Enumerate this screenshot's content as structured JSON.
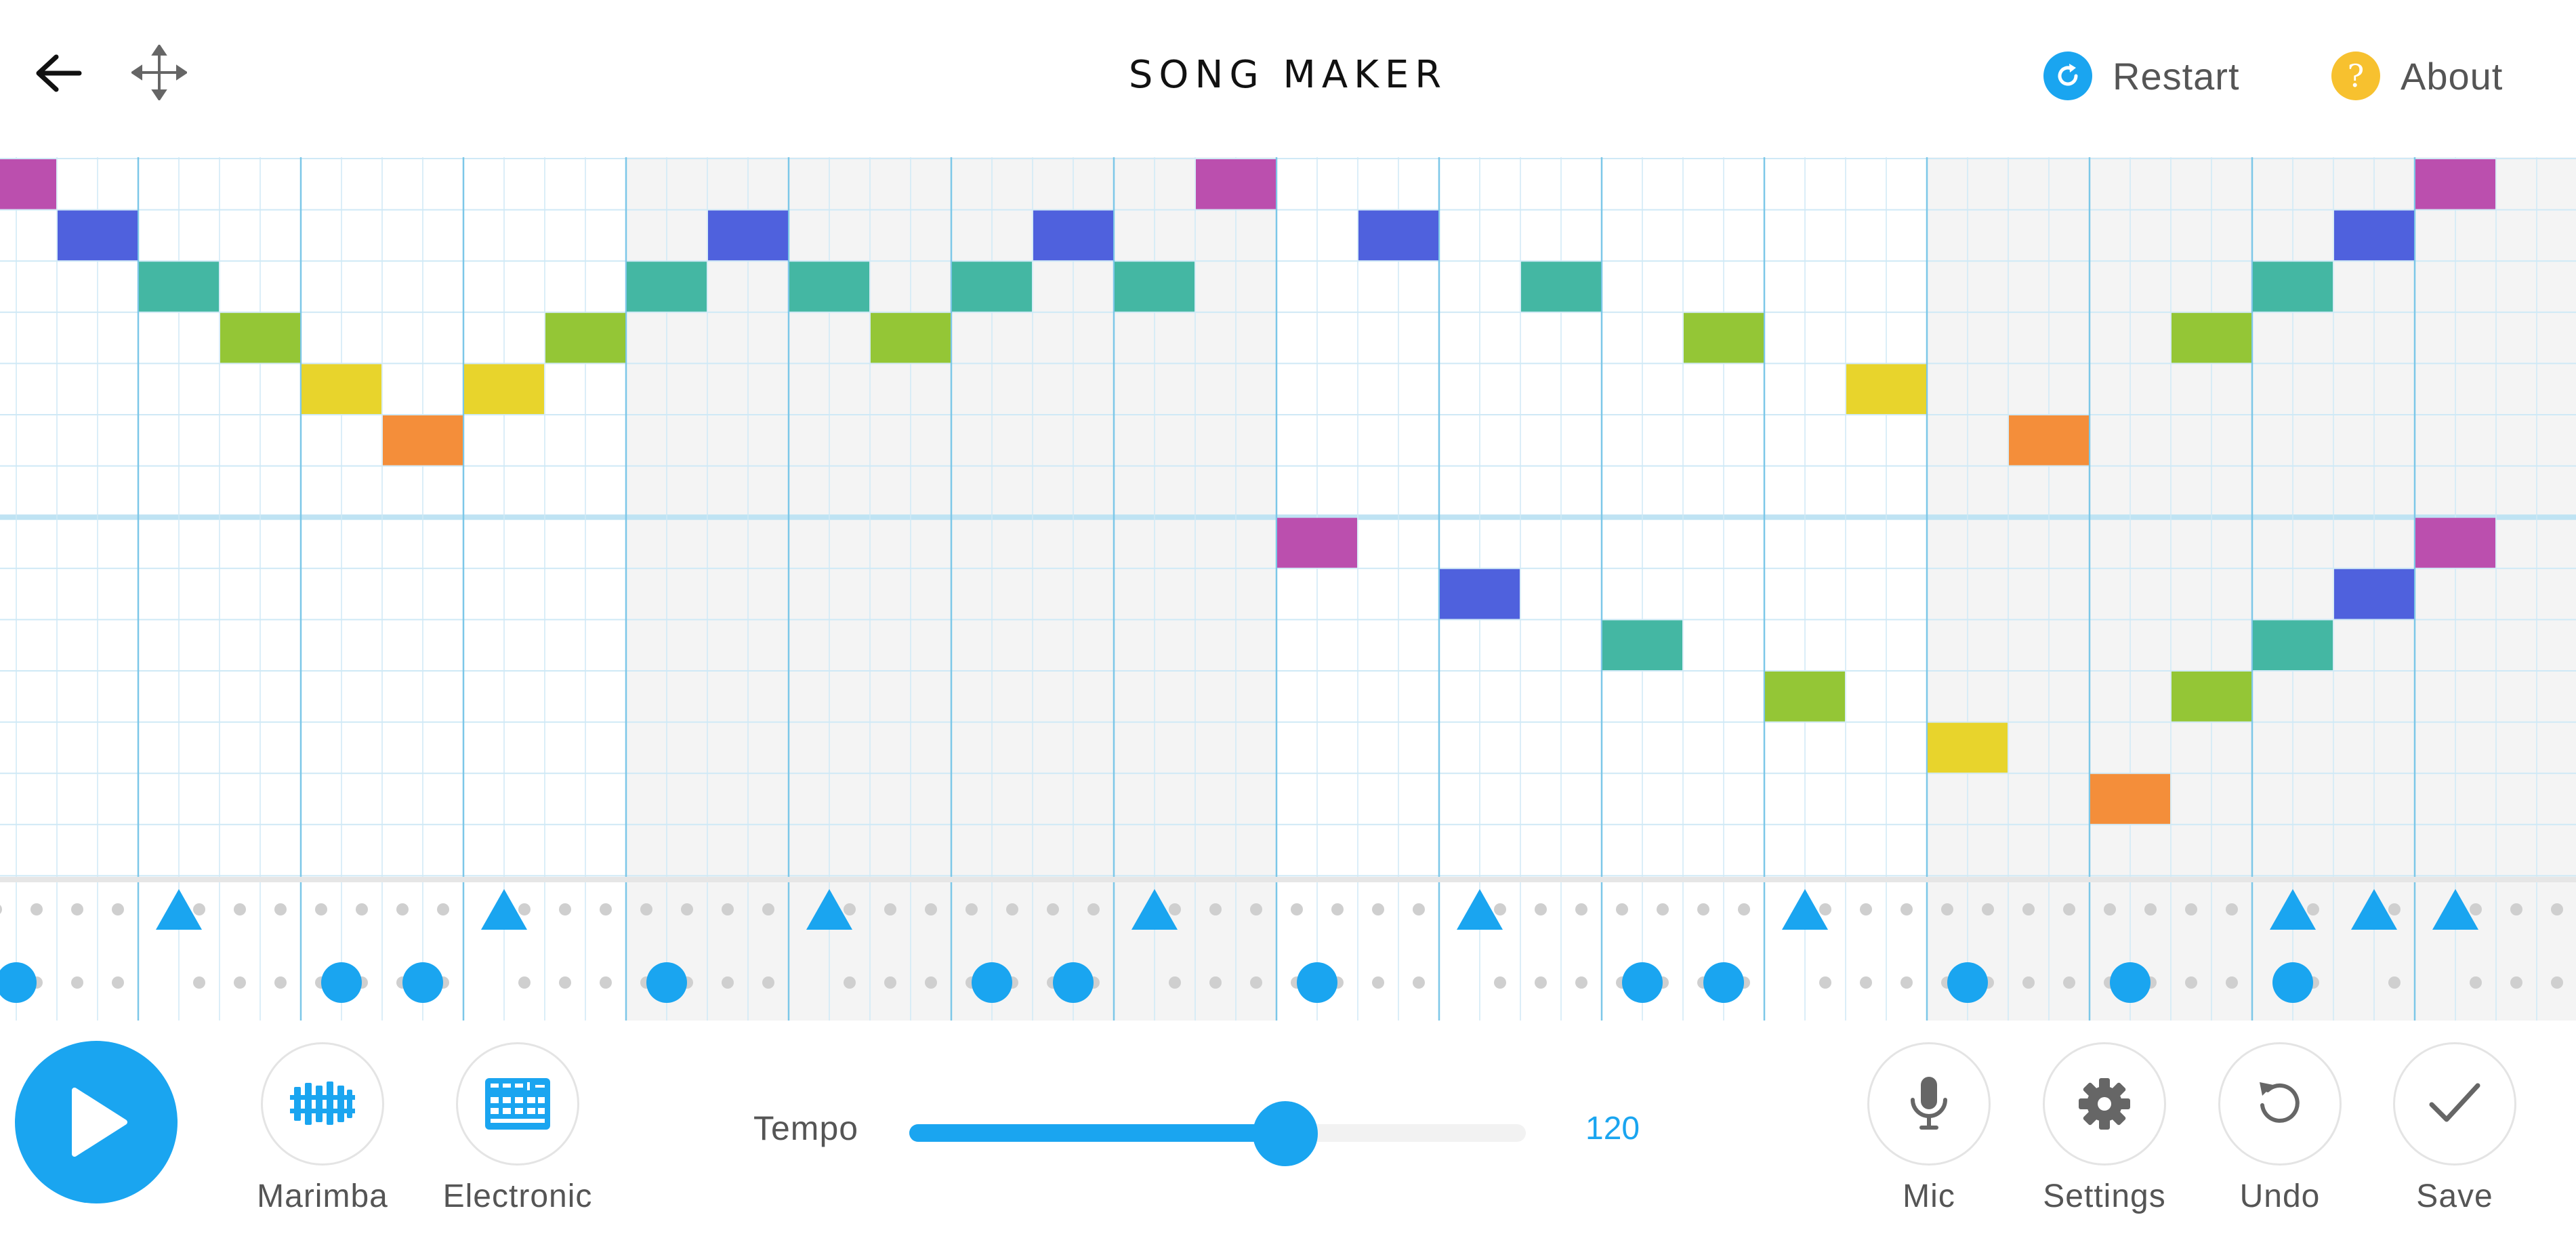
{
  "header": {
    "title": "SONG MAKER",
    "back_icon": "arrow-left-icon",
    "fullscreen_icon": "move-arrows-icon",
    "restart_label": "Restart",
    "about_label": "About"
  },
  "colors": {
    "accent": "#1aa5f0",
    "about": "#f7c12f",
    "grid_line": "#cfe9f6",
    "grid_bar": "#7cc7e8",
    "shaded_column": "#f4f4f4",
    "note_palette": [
      "#bb4fae",
      "#4f61dd",
      "#44b7a3",
      "#94c636",
      "#e8d42c",
      "#f48e3a"
    ]
  },
  "grid": {
    "columns": 32,
    "rows": 14,
    "shaded_column_ranges": [
      [
        8,
        15
      ],
      [
        24,
        31
      ]
    ],
    "notes": [
      {
        "col": 0,
        "row": 0,
        "pitch": 0
      },
      {
        "col": 1,
        "row": 1,
        "pitch": 1
      },
      {
        "col": 2,
        "row": 2,
        "pitch": 2
      },
      {
        "col": 3,
        "row": 3,
        "pitch": 3
      },
      {
        "col": 4,
        "row": 4,
        "pitch": 4
      },
      {
        "col": 5,
        "row": 5,
        "pitch": 5
      },
      {
        "col": 6,
        "row": 4,
        "pitch": 4
      },
      {
        "col": 7,
        "row": 3,
        "pitch": 3
      },
      {
        "col": 8,
        "row": 2,
        "pitch": 2
      },
      {
        "col": 9,
        "row": 1,
        "pitch": 1
      },
      {
        "col": 10,
        "row": 2,
        "pitch": 2
      },
      {
        "col": 11,
        "row": 3,
        "pitch": 3
      },
      {
        "col": 12,
        "row": 2,
        "pitch": 2
      },
      {
        "col": 13,
        "row": 1,
        "pitch": 1
      },
      {
        "col": 14,
        "row": 2,
        "pitch": 2
      },
      {
        "col": 15,
        "row": 0,
        "pitch": 0
      },
      {
        "col": 16,
        "row": 7,
        "pitch": 0
      },
      {
        "col": 17,
        "row": 1,
        "pitch": 1
      },
      {
        "col": 18,
        "row": 8,
        "pitch": 1
      },
      {
        "col": 19,
        "row": 2,
        "pitch": 2
      },
      {
        "col": 20,
        "row": 9,
        "pitch": 2
      },
      {
        "col": 21,
        "row": 3,
        "pitch": 3
      },
      {
        "col": 22,
        "row": 10,
        "pitch": 3
      },
      {
        "col": 23,
        "row": 4,
        "pitch": 4
      },
      {
        "col": 24,
        "row": 11,
        "pitch": 4
      },
      {
        "col": 25,
        "row": 5,
        "pitch": 5
      },
      {
        "col": 26,
        "row": 12,
        "pitch": 5
      },
      {
        "col": 27,
        "row": 3,
        "pitch": 3
      },
      {
        "col": 27,
        "row": 10,
        "pitch": 3
      },
      {
        "col": 28,
        "row": 2,
        "pitch": 2
      },
      {
        "col": 28,
        "row": 9,
        "pitch": 2
      },
      {
        "col": 29,
        "row": 1,
        "pitch": 1
      },
      {
        "col": 29,
        "row": 8,
        "pitch": 1
      },
      {
        "col": 30,
        "row": 0,
        "pitch": 0
      },
      {
        "col": 30,
        "row": 7,
        "pitch": 0
      }
    ]
  },
  "rhythm": {
    "triangles": [
      2,
      6,
      10,
      14,
      18,
      22,
      28,
      29,
      30
    ],
    "circles": [
      0,
      4,
      5,
      8,
      12,
      13,
      16,
      20,
      21,
      24,
      26,
      28
    ]
  },
  "footer": {
    "play_icon": "play-icon",
    "instrument_1": {
      "label": "Marimba",
      "icon": "marimba-icon"
    },
    "instrument_2": {
      "label": "Electronic",
      "icon": "electronic-drum-icon"
    },
    "tempo_label": "Tempo",
    "tempo_value": "120",
    "tempo_level": 0.61,
    "mic_label": "Mic",
    "settings_label": "Settings",
    "undo_label": "Undo",
    "save_label": "Save"
  }
}
